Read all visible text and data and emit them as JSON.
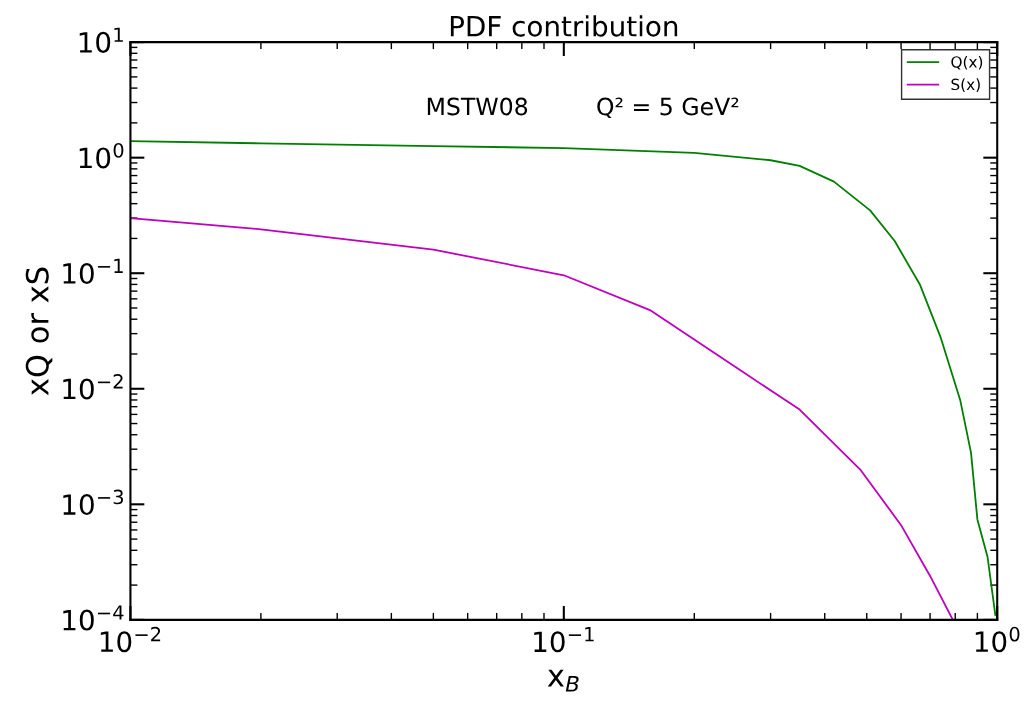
{
  "chart_data": {
    "type": "line",
    "title": "PDF contribution",
    "xlabel": "x$_{B}$",
    "ylabel": "xQ or xS",
    "annotations": [
      "MSTW08",
      "Q² = 5 GeV²"
    ],
    "log": "xy",
    "legend": "top right",
    "grid": false,
    "xlim": [
      0.01,
      1
    ],
    "ylim": [
      0.0001,
      10
    ],
    "xticks": [
      {
        "value": 0.01,
        "label": "10$^{−2}$"
      },
      {
        "value": 0.1,
        "label": "10$^{−1}$"
      },
      {
        "value": 1,
        "label": "10$^{0}$"
      }
    ],
    "yticks": [
      {
        "value": 0.0001,
        "label": "10$^{−4}$"
      },
      {
        "value": 0.001,
        "label": "10$^{−3}$"
      },
      {
        "value": 0.01,
        "label": "10$^{−2}$"
      },
      {
        "value": 0.1,
        "label": "10$^{−1}$"
      },
      {
        "value": 1,
        "label": "10$^{0}$"
      },
      {
        "value": 10,
        "label": "10$^{1}$"
      }
    ],
    "series": [
      {
        "name": "Q(x)",
        "color": "#008000",
        "x": [
          0.01,
          0.02,
          0.05,
          0.1,
          0.2,
          0.3,
          0.35,
          0.42,
          0.509,
          0.58,
          0.664,
          0.74,
          0.822,
          0.87,
          0.9,
          0.95,
          0.99
        ],
        "values": [
          1.39,
          1.33,
          1.26,
          1.21,
          1.1,
          0.95,
          0.85,
          0.62,
          0.35,
          0.19,
          0.079,
          0.028,
          0.0079,
          0.0028,
          0.00074,
          0.00035,
          0.00011
        ]
      },
      {
        "name": "S(x)",
        "color": "#bf00bf",
        "x": [
          0.01,
          0.02,
          0.05,
          0.1,
          0.158,
          0.255,
          0.35,
          0.483,
          0.6,
          0.7,
          0.79
        ],
        "values": [
          0.3,
          0.24,
          0.16,
          0.096,
          0.048,
          0.0145,
          0.0066,
          0.002,
          0.00066,
          0.00024,
          0.0001
        ]
      }
    ]
  }
}
